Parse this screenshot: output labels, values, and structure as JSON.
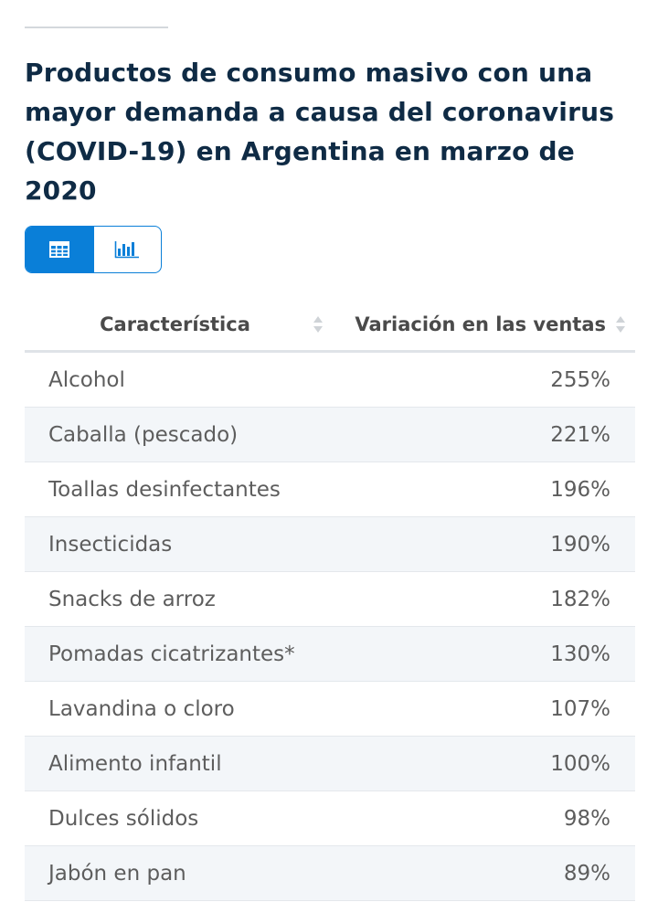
{
  "title": "Productos de consumo masivo con una mayor demanda a causa del coronavirus (COVID-19) en Argentina en marzo de 2020",
  "view_toggle": {
    "table_icon": "table-icon",
    "chart_icon": "bar-chart-icon",
    "active": "table"
  },
  "colors": {
    "accent": "#0a7fd8",
    "title": "#0f2b45",
    "stripe": "#f3f6f9"
  },
  "chart_data": {
    "type": "table",
    "title": "Productos de consumo masivo con una mayor demanda a causa del coronavirus (COVID-19) en Argentina en marzo de 2020",
    "columns": [
      "Característica",
      "Variación en las ventas"
    ],
    "rows": [
      {
        "label": "Alcohol",
        "value": 255,
        "display": "255%"
      },
      {
        "label": "Caballa (pescado)",
        "value": 221,
        "display": "221%"
      },
      {
        "label": "Toallas desinfectantes",
        "value": 196,
        "display": "196%"
      },
      {
        "label": "Insecticidas",
        "value": 190,
        "display": "190%"
      },
      {
        "label": "Snacks de arroz",
        "value": 182,
        "display": "182%"
      },
      {
        "label": "Pomadas cicatrizantes*",
        "value": 130,
        "display": "130%"
      },
      {
        "label": "Lavandina o cloro",
        "value": 107,
        "display": "107%"
      },
      {
        "label": "Alimento infantil",
        "value": 100,
        "display": "100%"
      },
      {
        "label": "Dulces sólidos",
        "value": 98,
        "display": "98%"
      },
      {
        "label": "Jabón en pan",
        "value": 89,
        "display": "89%"
      }
    ]
  }
}
